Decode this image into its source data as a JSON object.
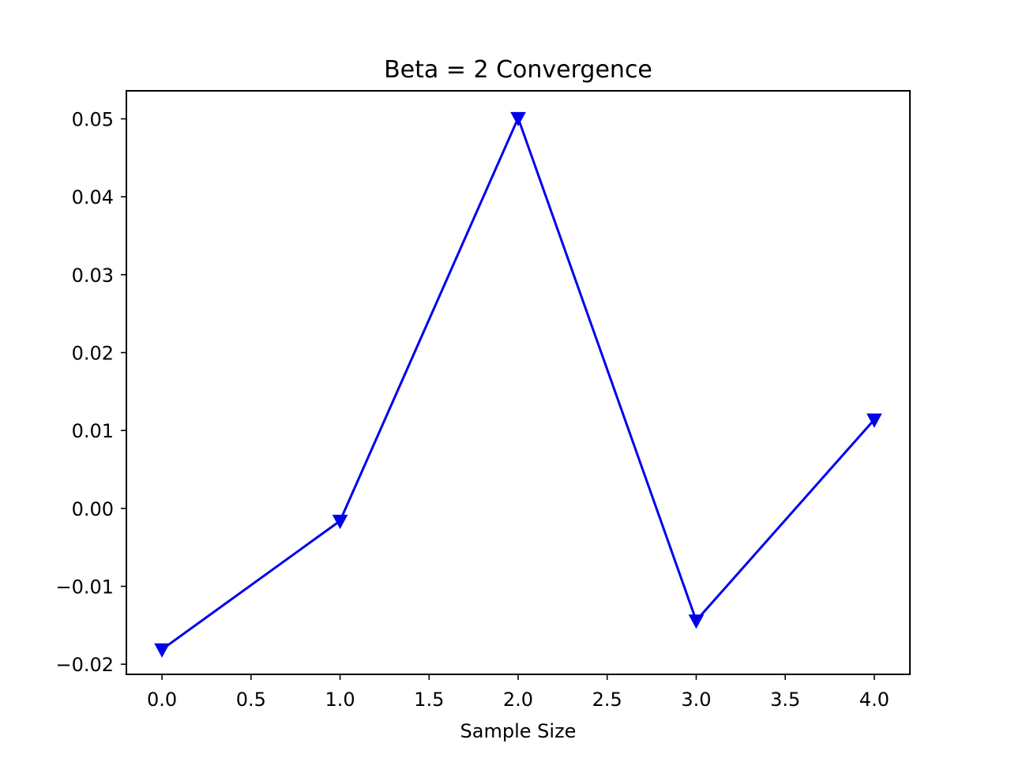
{
  "chart_data": {
    "type": "line",
    "title": "Beta = 2 Convergence",
    "xlabel": "Sample Size",
    "ylabel": "",
    "x": [
      0,
      1,
      2,
      3,
      4
    ],
    "series": [
      {
        "values": [
          -0.0181,
          -0.0016,
          0.0501,
          -0.0144,
          0.0114
        ],
        "color": "#0000ee",
        "marker": "triangle-down"
      }
    ],
    "xlim": [
      -0.2,
      4.2
    ],
    "ylim": [
      -0.0213,
      0.0536
    ],
    "xticks": [
      0.0,
      0.5,
      1.0,
      1.5,
      2.0,
      2.5,
      3.0,
      3.5,
      4.0
    ],
    "xtick_labels": [
      "0.0",
      "0.5",
      "1.0",
      "1.5",
      "2.0",
      "2.5",
      "3.0",
      "3.5",
      "4.0"
    ],
    "yticks": [
      -0.02,
      -0.01,
      0.0,
      0.01,
      0.02,
      0.03,
      0.04,
      0.05
    ],
    "ytick_labels": [
      "−0.02",
      "−0.01",
      "0.00",
      "0.01",
      "0.02",
      "0.03",
      "0.04",
      "0.05"
    ],
    "grid": false,
    "legend": "none"
  }
}
